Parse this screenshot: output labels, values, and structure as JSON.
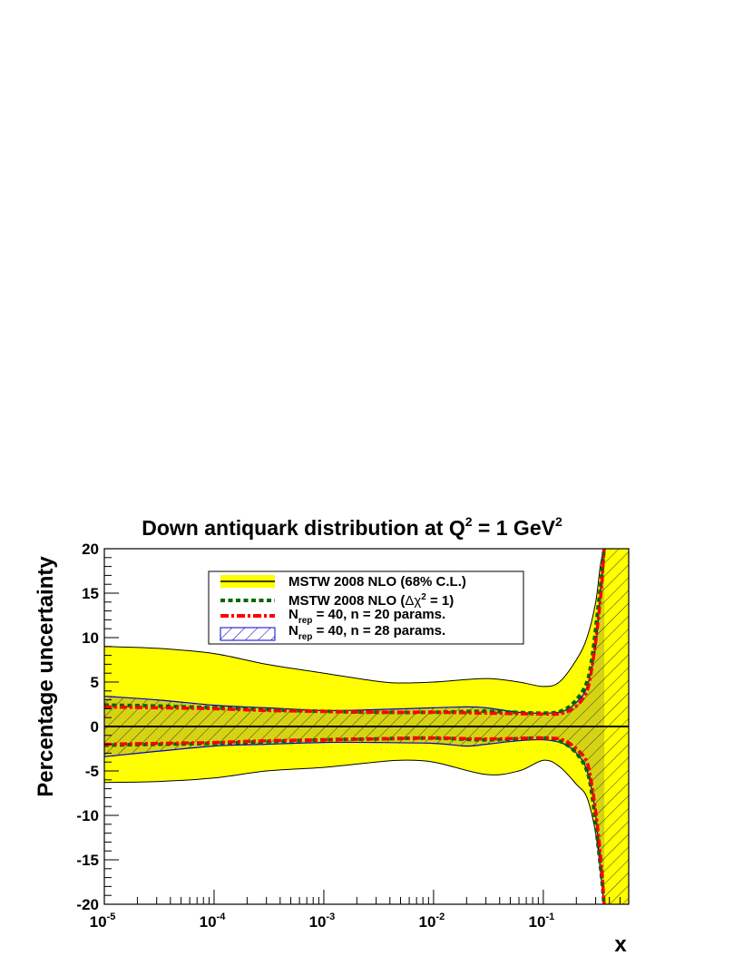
{
  "chart_data": {
    "type": "area",
    "title": {
      "main": "Down antiquark distribution at Q",
      "sup1": "2",
      "mid": " = 1 GeV",
      "sup2": "2"
    },
    "xlabel": "x",
    "ylabel": "Percentage uncertainty",
    "xscale": "log",
    "xlim": [
      1e-05,
      0.6
    ],
    "ylim": [
      -20,
      20
    ],
    "x_ticks": [
      {
        "base": "10",
        "exp": "-5",
        "value": 1e-05
      },
      {
        "base": "10",
        "exp": "-4",
        "value": 0.0001
      },
      {
        "base": "10",
        "exp": "-3",
        "value": 0.001
      },
      {
        "base": "10",
        "exp": "-2",
        "value": 0.01
      },
      {
        "base": "10",
        "exp": "-1",
        "value": 0.1
      }
    ],
    "y_ticks": [
      "-20",
      "-15",
      "-10",
      "-5",
      "0",
      "5",
      "10",
      "15",
      "20"
    ],
    "legend": {
      "placement": "top-center",
      "entries": [
        {
          "text": "MSTW 2008 NLO (68% C.L.)",
          "style": "yellow-band"
        },
        {
          "pre": "MSTW 2008 NLO (",
          "greek": "Δχ",
          "sup": "2",
          "post": " = 1)",
          "style": "green-dotted"
        },
        {
          "main": "N",
          "sub": "rep",
          "post": " = 40, n = 20 params.",
          "style": "red-dashdot"
        },
        {
          "main": "N",
          "sub": "rep",
          "post": " = 40, n = 28 params.",
          "style": "blue-hatched"
        }
      ]
    },
    "colors": {
      "yellow_band": "#ffff00",
      "green": "#006600",
      "red": "#ff0000",
      "blue": "#0000cc",
      "hatch_overlap": "#b5b020"
    },
    "series": [
      {
        "name": "MSTW 2008 NLO (68% C.L.)",
        "x": [
          1e-05,
          3e-05,
          0.0001,
          0.0003,
          0.001,
          0.003,
          0.005,
          0.01,
          0.03,
          0.06,
          0.1,
          0.14,
          0.2,
          0.25,
          0.3,
          0.33,
          0.36
        ],
        "upper": [
          9.0,
          8.8,
          8.2,
          7.0,
          6.0,
          5.1,
          4.9,
          5.0,
          5.4,
          5.0,
          4.5,
          5.0,
          7.5,
          10.0,
          14.0,
          18.0,
          20.5
        ],
        "lower": [
          -6.3,
          -6.2,
          -5.8,
          -5.0,
          -4.6,
          -4.0,
          -3.8,
          -4.0,
          -5.4,
          -5.0,
          -3.8,
          -4.5,
          -6.5,
          -8.0,
          -12.0,
          -16.0,
          -20.5
        ]
      },
      {
        "name": "MSTW 2008 NLO (Δχ2 = 1)",
        "x": [
          1e-05,
          3e-05,
          0.0001,
          0.0003,
          0.001,
          0.003,
          0.01,
          0.03,
          0.1,
          0.15,
          0.2,
          0.25,
          0.28,
          0.31,
          0.34,
          0.36
        ],
        "upper": [
          2.4,
          2.3,
          2.1,
          1.9,
          1.7,
          1.6,
          1.6,
          1.7,
          1.5,
          1.8,
          3.0,
          5.0,
          8.0,
          12.5,
          17.0,
          20.5
        ],
        "lower": [
          -2.1,
          -2.0,
          -1.9,
          -1.7,
          -1.5,
          -1.4,
          -1.3,
          -1.5,
          -1.3,
          -1.8,
          -3.0,
          -5.0,
          -8.0,
          -12.5,
          -17.0,
          -20.5
        ]
      },
      {
        "name": "Nrep = 40, n = 20 params.",
        "x": [
          1e-05,
          3e-05,
          0.0001,
          0.0003,
          0.001,
          0.003,
          0.01,
          0.03,
          0.1,
          0.15,
          0.2,
          0.25,
          0.28,
          0.31,
          0.34,
          0.36
        ],
        "upper": [
          2.2,
          2.1,
          2.0,
          1.8,
          1.7,
          1.6,
          1.6,
          1.5,
          1.4,
          1.5,
          2.3,
          4.0,
          7.0,
          11.0,
          16.0,
          20.5
        ],
        "lower": [
          -2.0,
          -1.9,
          -1.8,
          -1.6,
          -1.5,
          -1.4,
          -1.3,
          -1.4,
          -1.3,
          -1.5,
          -2.5,
          -4.0,
          -7.0,
          -11.0,
          -16.0,
          -20.5
        ]
      },
      {
        "name": "Nrep = 40, n = 28 params.",
        "x": [
          1e-05,
          3e-05,
          0.0001,
          0.0003,
          0.001,
          0.003,
          0.01,
          0.02,
          0.03,
          0.06,
          0.1,
          0.15,
          0.2,
          0.25,
          0.3,
          0.33,
          0.36
        ],
        "upper": [
          3.4,
          3.0,
          2.4,
          2.1,
          1.8,
          1.9,
          2.1,
          2.2,
          2.1,
          1.6,
          1.5,
          1.7,
          2.7,
          4.5,
          9.0,
          15.0,
          20.5
        ],
        "lower": [
          -3.4,
          -2.8,
          -2.2,
          -2.0,
          -1.8,
          -1.8,
          -1.9,
          -2.2,
          -2.0,
          -1.6,
          -1.5,
          -1.9,
          -3.0,
          -5.0,
          -10.0,
          -16.0,
          -20.5
        ]
      }
    ],
    "central": 0
  }
}
